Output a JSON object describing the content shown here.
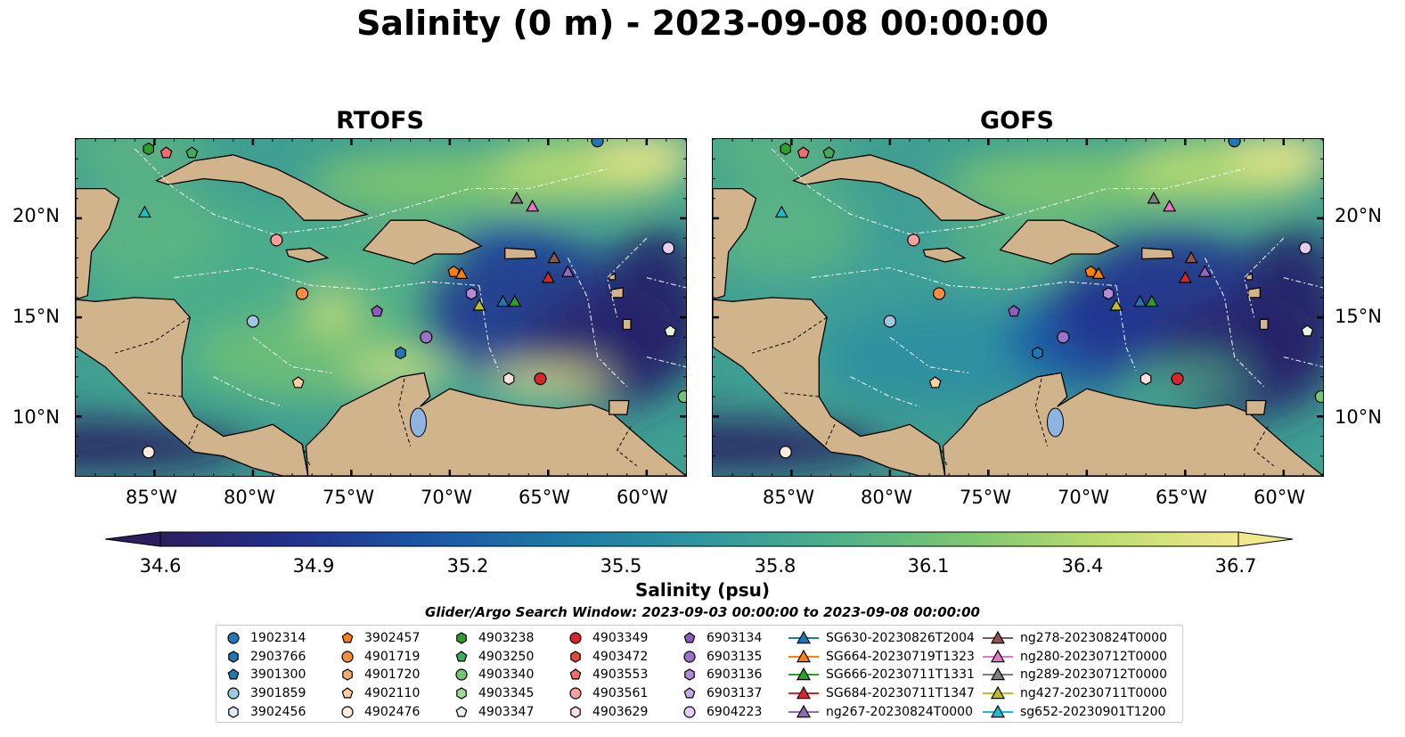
{
  "title": "Salinity (0 m) - 2023-09-08 00:00:00",
  "panels": [
    {
      "title": "RTOFS"
    },
    {
      "title": "GOFS"
    }
  ],
  "lat_labels": [
    "20°N",
    "15°N",
    "10°N"
  ],
  "lon_labels": [
    "85°W",
    "80°W",
    "75°W",
    "70°W",
    "65°W",
    "60°W"
  ],
  "colorbar": {
    "label": "Salinity (psu)",
    "ticks": [
      "34.6",
      "34.9",
      "35.2",
      "35.5",
      "35.8",
      "36.1",
      "36.4",
      "36.7"
    ],
    "min": 34.6,
    "max": 36.7,
    "colors": [
      "#2c1e5e",
      "#22318e",
      "#1b57a6",
      "#1c7aa4",
      "#2e96a0",
      "#4db08a",
      "#7ec670",
      "#bddc6e",
      "#f2e88c"
    ]
  },
  "search_window": "Glider/Argo Search Window: 2023-09-03 00:00:00 to 2023-09-08 00:00:00",
  "legend": [
    {
      "label": "1902314",
      "marker": "circle",
      "color": "#1f77b4"
    },
    {
      "label": "2903766",
      "marker": "hexagon",
      "color": "#1f77b4"
    },
    {
      "label": "3901300",
      "marker": "pentagon",
      "color": "#1f77b4"
    },
    {
      "label": "3901859",
      "marker": "circle",
      "color": "#9ecae1"
    },
    {
      "label": "3902456",
      "marker": "hexagon",
      "color": "#deebf7"
    },
    {
      "label": "3902457",
      "marker": "pentagon",
      "color": "#ff7f0e"
    },
    {
      "label": "4901719",
      "marker": "circle",
      "color": "#fd8d3c"
    },
    {
      "label": "4901720",
      "marker": "hexagon",
      "color": "#fdae6b"
    },
    {
      "label": "4902110",
      "marker": "pentagon",
      "color": "#fdd0a2"
    },
    {
      "label": "4902476",
      "marker": "circle",
      "color": "#feedde"
    },
    {
      "label": "4903238",
      "marker": "hexagon",
      "color": "#2ca02c"
    },
    {
      "label": "4903250",
      "marker": "pentagon",
      "color": "#41ab5d"
    },
    {
      "label": "4903340",
      "marker": "circle",
      "color": "#74c476"
    },
    {
      "label": "4903345",
      "marker": "hexagon",
      "color": "#a1d99b"
    },
    {
      "label": "4903347",
      "marker": "pentagon",
      "color": "#e5f5e0"
    },
    {
      "label": "4903349",
      "marker": "circle",
      "color": "#d62728"
    },
    {
      "label": "4903472",
      "marker": "hexagon",
      "color": "#e34a33"
    },
    {
      "label": "4903553",
      "marker": "pentagon",
      "color": "#f46d6d"
    },
    {
      "label": "4903561",
      "marker": "circle",
      "color": "#fc9e9e"
    },
    {
      "label": "4903629",
      "marker": "hexagon",
      "color": "#fee0e0"
    },
    {
      "label": "6903134",
      "marker": "pentagon",
      "color": "#8e5cc0"
    },
    {
      "label": "6903135",
      "marker": "circle",
      "color": "#9b72c9"
    },
    {
      "label": "6903136",
      "marker": "hexagon",
      "color": "#b08bd6"
    },
    {
      "label": "6903137",
      "marker": "pentagon",
      "color": "#c7a9e6"
    },
    {
      "label": "6904223",
      "marker": "circle",
      "color": "#e2cdf5"
    },
    {
      "label": "SG630-20230826T2004",
      "marker": "triangle-line",
      "color": "#1f77b4"
    },
    {
      "label": "SG664-20230719T1323",
      "marker": "triangle-line",
      "color": "#ff7f0e"
    },
    {
      "label": "SG666-20230711T1331",
      "marker": "triangle-line",
      "color": "#2ca02c"
    },
    {
      "label": "SG684-20230711T1347",
      "marker": "triangle-line",
      "color": "#d62728"
    },
    {
      "label": "ng267-20230824T0000",
      "marker": "triangle-line",
      "color": "#9467bd"
    },
    {
      "label": "ng278-20230824T0000",
      "marker": "triangle-line",
      "color": "#8c564b"
    },
    {
      "label": "ng280-20230712T0000",
      "marker": "triangle-line",
      "color": "#e377c2"
    },
    {
      "label": "ng289-20230712T0000",
      "marker": "triangle-line",
      "color": "#7f7f7f"
    },
    {
      "label": "ng427-20230711T0000",
      "marker": "triangle-line",
      "color": "#bcbd22"
    },
    {
      "label": "sg652-20230901T1200",
      "marker": "triangle-line",
      "color": "#17becf"
    }
  ],
  "markers": [
    {
      "id": "sg652-20230901T1200",
      "lon": -85.5,
      "lat": 20.3
    },
    {
      "id": "4903561",
      "lon": -78.8,
      "lat": 18.9
    },
    {
      "id": "4901719",
      "lon": -77.5,
      "lat": 16.2
    },
    {
      "id": "3901859",
      "lon": -80.0,
      "lat": 14.8
    },
    {
      "id": "4902110",
      "lon": -77.7,
      "lat": 11.7
    },
    {
      "id": "4902476",
      "lon": -85.3,
      "lat": 8.2
    },
    {
      "id": "6903134",
      "lon": -73.7,
      "lat": 15.3
    },
    {
      "id": "6903135",
      "lon": -71.2,
      "lat": 14.0
    },
    {
      "id": "2903766",
      "lon": -72.5,
      "lat": 13.2
    },
    {
      "id": "3902457",
      "lon": -69.8,
      "lat": 17.3
    },
    {
      "id": "SG664-20230719T1323",
      "lon": -69.4,
      "lat": 17.2
    },
    {
      "id": "6903136",
      "lon": -68.9,
      "lat": 16.2
    },
    {
      "id": "ng427-20230711T0000",
      "lon": -68.5,
      "lat": 15.6
    },
    {
      "id": "SG630-20230826T2004",
      "lon": -67.3,
      "lat": 15.8
    },
    {
      "id": "SG666-20230711T1331",
      "lon": -66.7,
      "lat": 15.8
    },
    {
      "id": "ng289-20230712T0000",
      "lon": -66.6,
      "lat": 21.0
    },
    {
      "id": "ng280-20230712T0000",
      "lon": -65.8,
      "lat": 20.6
    },
    {
      "id": "SG684-20230711T1347",
      "lon": -65.0,
      "lat": 17.0
    },
    {
      "id": "ng278-20230824T0000",
      "lon": -64.7,
      "lat": 18.0
    },
    {
      "id": "ng267-20230824T0000",
      "lon": -64.0,
      "lat": 17.3
    },
    {
      "id": "6904223",
      "lon": -58.9,
      "lat": 18.5
    },
    {
      "id": "4903347",
      "lon": -58.8,
      "lat": 14.3
    },
    {
      "id": "4903340",
      "lon": -58.1,
      "lat": 11.0
    },
    {
      "id": "4903629",
      "lon": -67.0,
      "lat": 11.9
    },
    {
      "id": "4903349",
      "lon": -65.4,
      "lat": 11.9
    },
    {
      "id": "1902314",
      "lon": -62.5,
      "lat": 23.9
    },
    {
      "id": "4903238",
      "lon": -85.3,
      "lat": 23.5
    },
    {
      "id": "4903553",
      "lon": -84.4,
      "lat": 23.3
    },
    {
      "id": "4903250",
      "lon": -83.1,
      "lat": 23.3
    }
  ],
  "land_labels": []
}
